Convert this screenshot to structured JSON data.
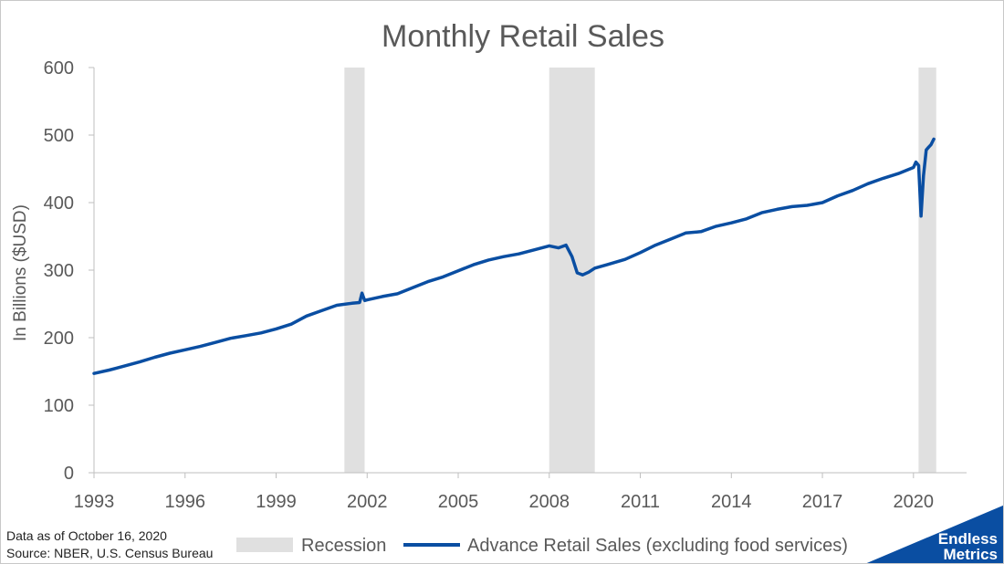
{
  "chart_data": {
    "type": "line",
    "title": "Monthly Retail Sales",
    "ylabel": "In Billions ($USD)",
    "xlabel": "",
    "xlim": [
      1993.0,
      2021.75
    ],
    "ylim": [
      0,
      600
    ],
    "y_ticks": [
      0,
      100,
      200,
      300,
      400,
      500,
      600
    ],
    "x_ticks": [
      1993,
      1996,
      1999,
      2002,
      2005,
      2008,
      2011,
      2014,
      2017,
      2020
    ],
    "x_tick_labels": [
      "1993",
      "1996",
      "1999",
      "2002",
      "2005",
      "2008",
      "2011",
      "2014",
      "2017",
      "2020"
    ],
    "grid": false,
    "legend_position": "bottom",
    "colors": {
      "series": "#0a4ea2",
      "recession": "#e0e0e0",
      "axis": "#bfbfbf",
      "text": "#595959"
    },
    "recessions": [
      {
        "start": 2001.25,
        "end": 2001.917
      },
      {
        "start": 2008.0,
        "end": 2009.5
      },
      {
        "start": 2020.167,
        "end": 2020.75
      }
    ],
    "series": [
      {
        "name": "Advance Retail Sales (excluding food services)",
        "x": [
          1993.0,
          1993.5,
          1994.0,
          1994.5,
          1995.0,
          1995.5,
          1996.0,
          1996.5,
          1997.0,
          1997.5,
          1998.0,
          1998.5,
          1999.0,
          1999.5,
          2000.0,
          2000.5,
          2001.0,
          2001.5,
          2001.75,
          2001.83,
          2001.92,
          2002.0,
          2002.5,
          2003.0,
          2003.5,
          2004.0,
          2004.5,
          2005.0,
          2005.5,
          2006.0,
          2006.5,
          2007.0,
          2007.5,
          2008.0,
          2008.3,
          2008.55,
          2008.75,
          2008.92,
          2009.1,
          2009.3,
          2009.5,
          2009.9,
          2010.5,
          2011.0,
          2011.5,
          2012.0,
          2012.5,
          2013.0,
          2013.5,
          2014.0,
          2014.5,
          2015.0,
          2015.5,
          2016.0,
          2016.5,
          2017.0,
          2017.5,
          2018.0,
          2018.5,
          2019.0,
          2019.5,
          2020.0,
          2020.08,
          2020.17,
          2020.25,
          2020.33,
          2020.42,
          2020.5,
          2020.58,
          2020.67
        ],
        "y": [
          147,
          152,
          158,
          164,
          171,
          177,
          182,
          187,
          193,
          199,
          203,
          207,
          213,
          220,
          232,
          240,
          248,
          251,
          252,
          266,
          255,
          256,
          261,
          265,
          274,
          283,
          290,
          299,
          308,
          315,
          320,
          324,
          330,
          336,
          333,
          337,
          320,
          296,
          293,
          297,
          303,
          308,
          316,
          326,
          337,
          346,
          355,
          357,
          365,
          370,
          376,
          385,
          390,
          394,
          396,
          400,
          410,
          418,
          428,
          436,
          443,
          452,
          460,
          455,
          380,
          440,
          478,
          482,
          486,
          494
        ]
      }
    ]
  },
  "legend": {
    "recession_label": "Recession"
  },
  "footnote": {
    "line1": "Data as of October 16, 2020",
    "line2": "Source: NBER, U.S. Census Bureau"
  },
  "logo": {
    "line1": "Endless",
    "line2": "Metrics"
  }
}
